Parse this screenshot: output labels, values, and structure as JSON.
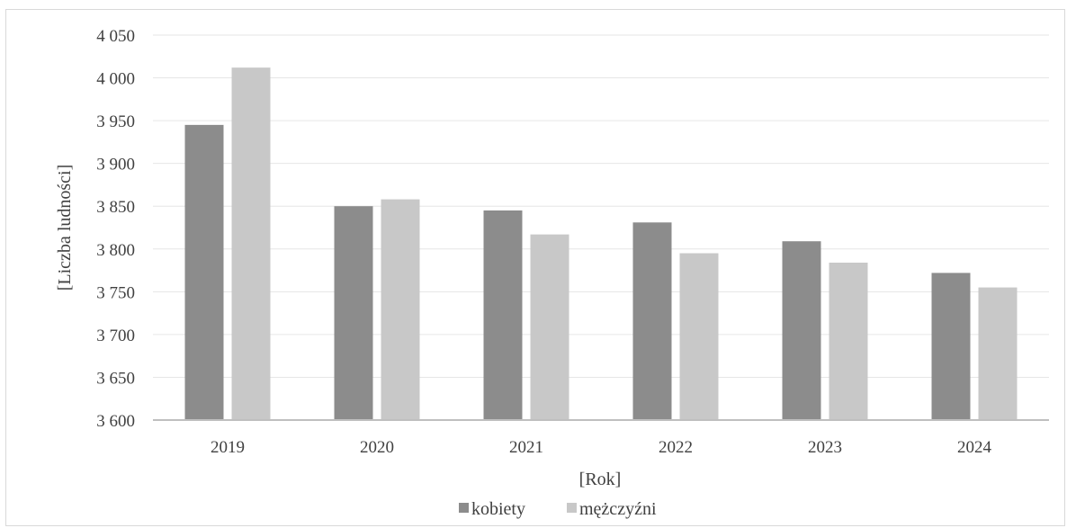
{
  "chart_data": {
    "type": "bar",
    "title": "",
    "xlabel": "[Rok]",
    "ylabel": "[Liczba ludności]",
    "categories": [
      "2019",
      "2020",
      "2021",
      "2022",
      "2023",
      "2024"
    ],
    "series": [
      {
        "name": "kobiety",
        "values": [
          3945,
          3850,
          3845,
          3831,
          3809,
          3772
        ],
        "color": "#8c8c8c"
      },
      {
        "name": "mężczyźni",
        "values": [
          4012,
          3858,
          3817,
          3795,
          3784,
          3755
        ],
        "color": "#c8c8c8"
      }
    ],
    "ylim": [
      3600,
      4050
    ],
    "ystep": 50,
    "ytick_labels": [
      "3 600",
      "3 650",
      "3 700",
      "3 750",
      "3 800",
      "3 850",
      "3 900",
      "3 950",
      "4 000",
      "4 050"
    ],
    "grid": true,
    "legend_position": "bottom"
  }
}
